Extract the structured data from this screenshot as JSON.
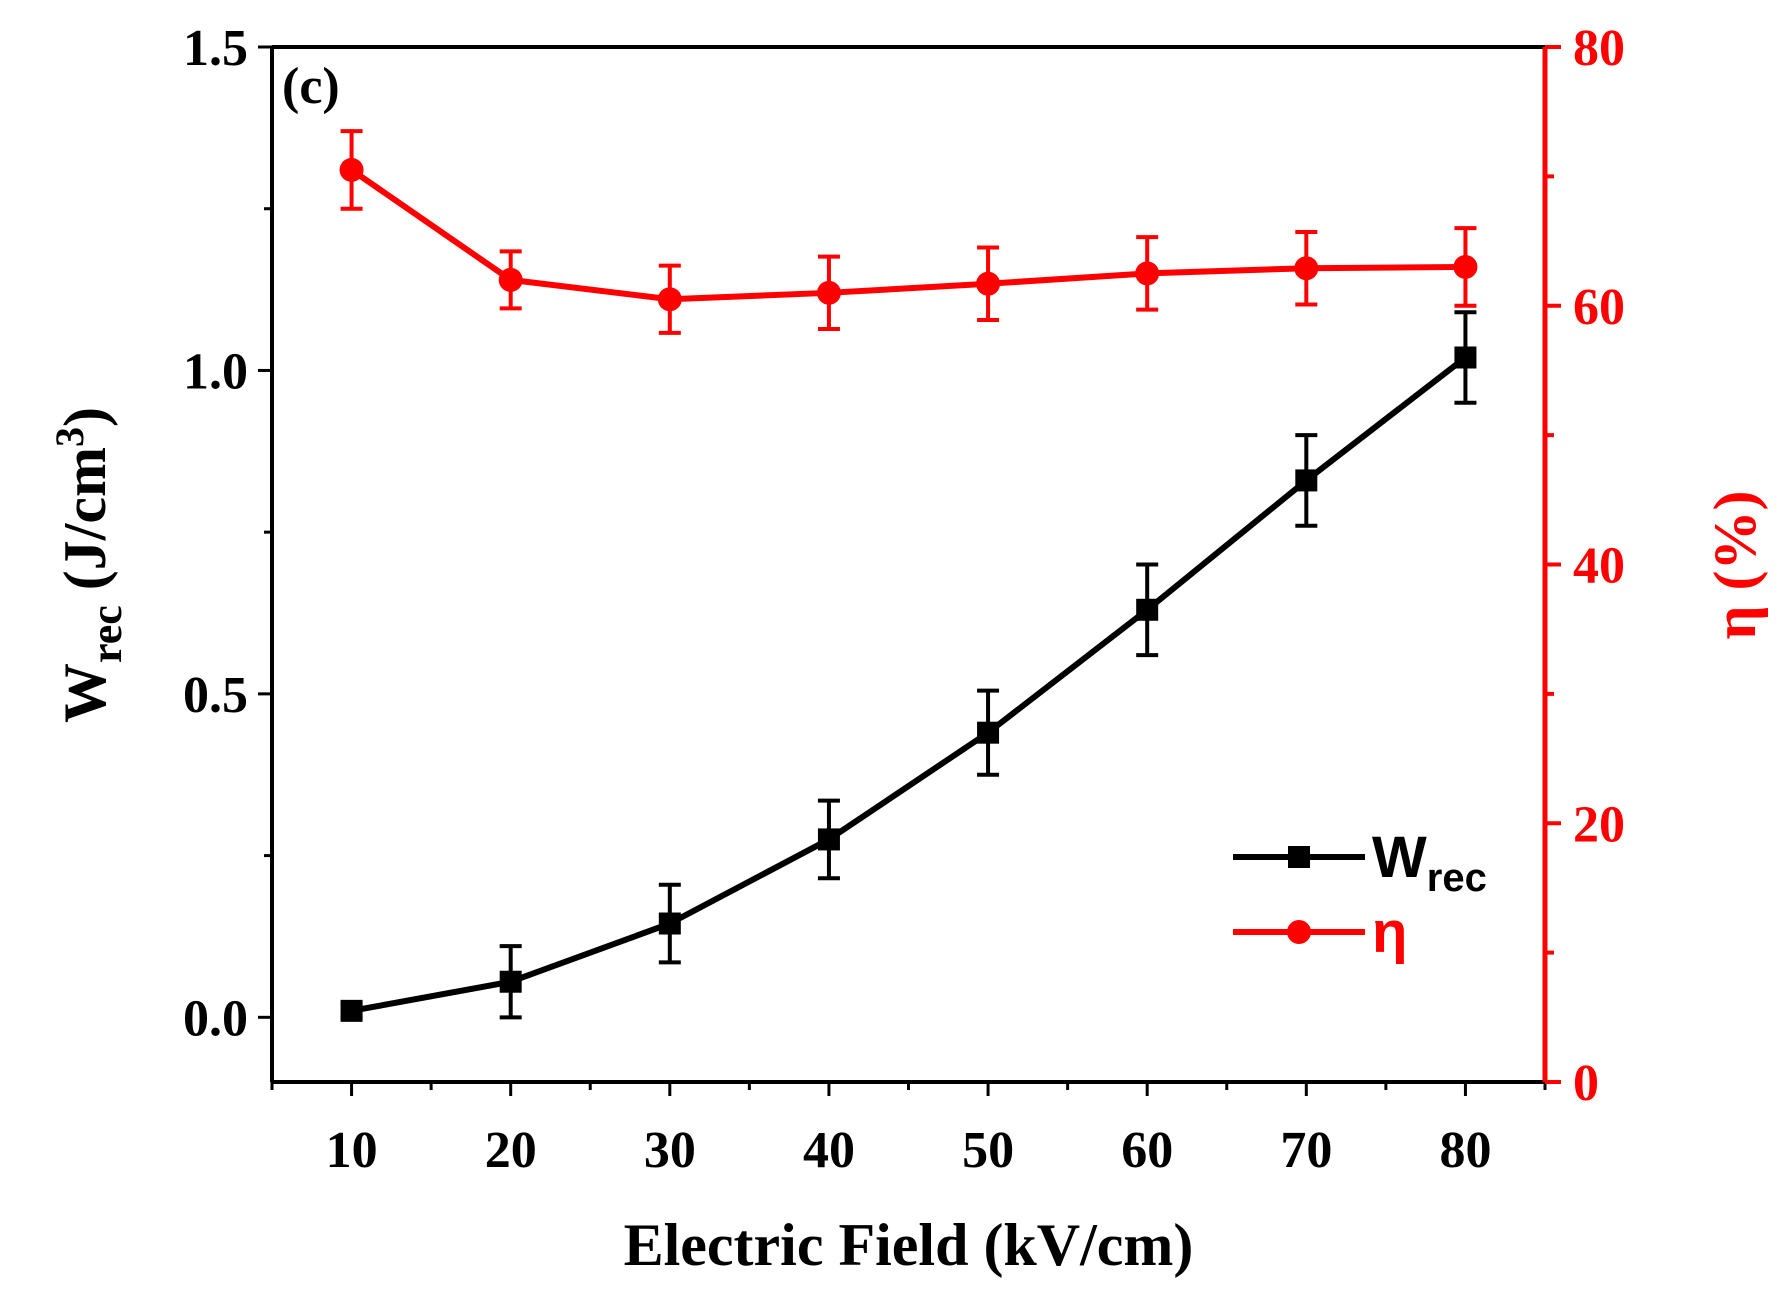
{
  "chart_data": {
    "type": "line",
    "panel_label": "(c)",
    "xlabel": "Electric Field (kV/cm)",
    "x": [
      10,
      20,
      30,
      40,
      50,
      60,
      70,
      80
    ],
    "xlim": [
      5,
      85
    ],
    "xticks": [
      10,
      20,
      30,
      40,
      50,
      60,
      70,
      80
    ],
    "y_left": {
      "label_main": "W",
      "label_sub": "rec",
      "label_unit": " (J/cm",
      "label_sup": "3",
      "label_close": ")",
      "lim": [
        -0.1,
        1.5
      ],
      "ticks": [
        0.0,
        0.5,
        1.0,
        1.5
      ],
      "tick_labels": [
        "0.0",
        "0.5",
        "1.0",
        "1.5"
      ]
    },
    "y_right": {
      "label": "η (%)",
      "lim": [
        0,
        80
      ],
      "ticks": [
        0,
        20,
        40,
        60,
        80
      ],
      "tick_labels": [
        "0",
        "20",
        "40",
        "60",
        "80"
      ],
      "color": "#ff0000"
    },
    "series": [
      {
        "name": "W",
        "name_sub": "rec",
        "axis": "left",
        "marker": "square",
        "color": "#000000",
        "values": [
          0.01,
          0.055,
          0.145,
          0.275,
          0.44,
          0.63,
          0.83,
          1.02
        ],
        "errors": [
          0.01,
          0.055,
          0.06,
          0.06,
          0.065,
          0.07,
          0.07,
          0.07
        ]
      },
      {
        "name": "η",
        "name_sub": "",
        "axis": "right",
        "marker": "circle",
        "color": "#ff0000",
        "values": [
          70.5,
          62.0,
          60.5,
          61.0,
          61.7,
          62.5,
          62.9,
          63.0
        ],
        "errors": [
          3.0,
          2.2,
          2.6,
          2.8,
          2.8,
          2.8,
          2.8,
          3.0
        ]
      }
    ],
    "legend_position": "lower-right"
  }
}
